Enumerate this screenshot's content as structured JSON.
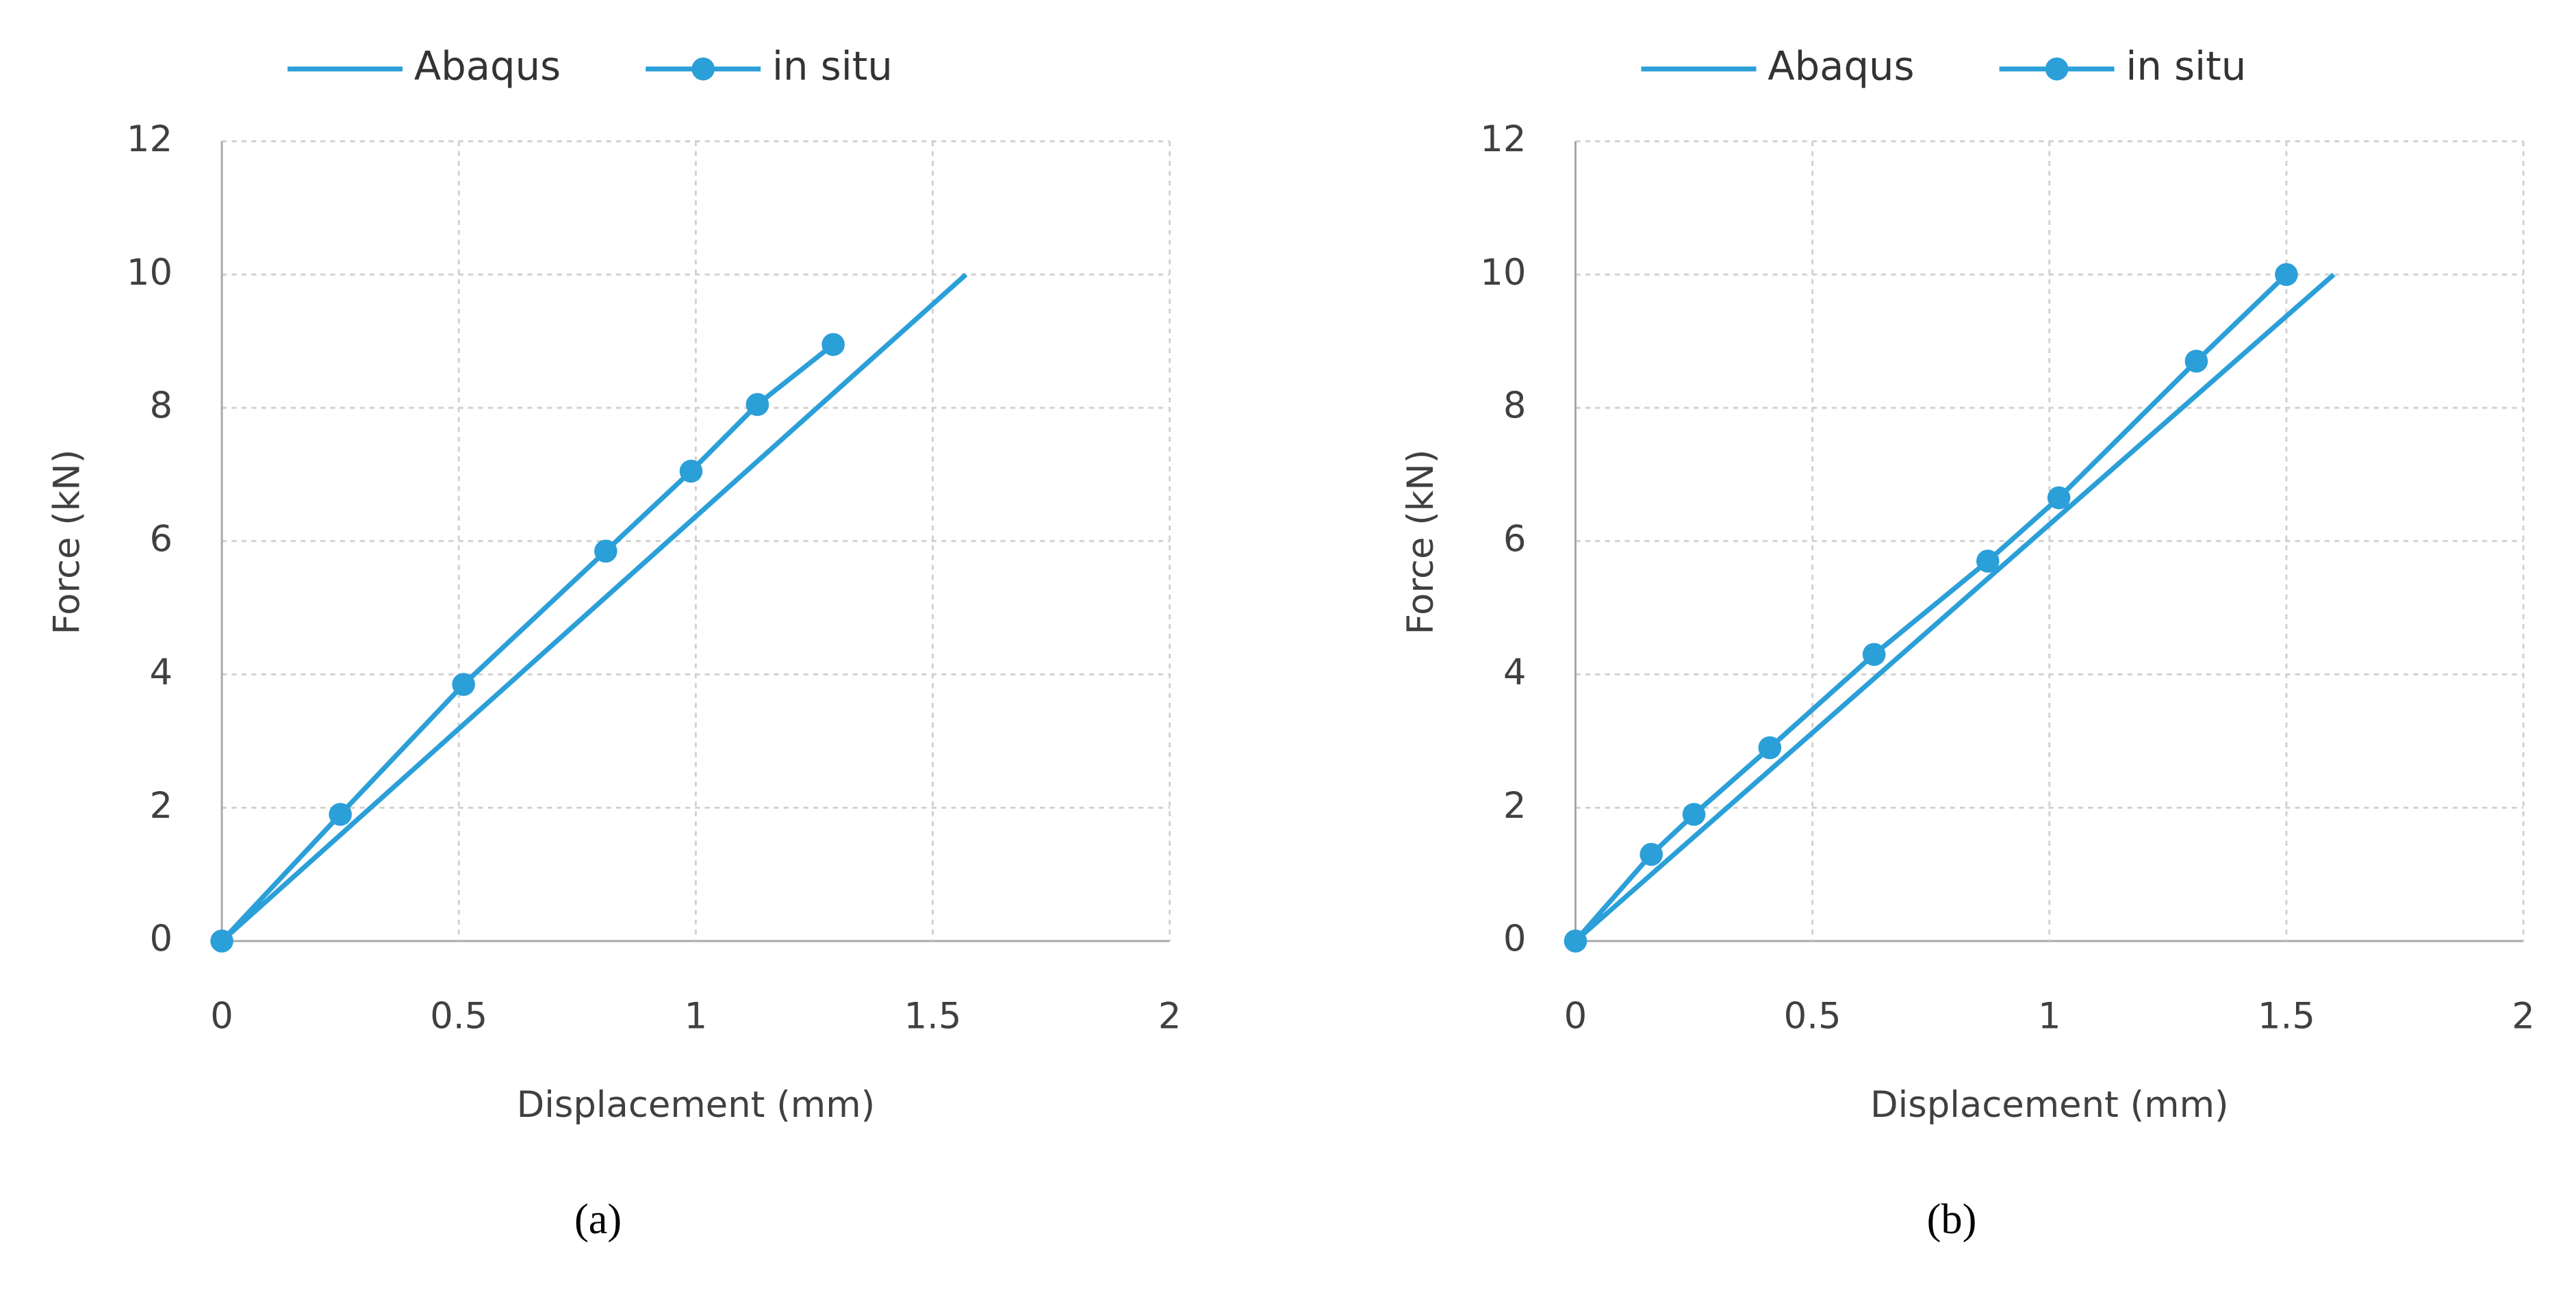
{
  "chart_data": [
    {
      "type": "line",
      "caption": "(a)",
      "xlabel": "Displacement (mm)",
      "ylabel": "Force (kN)",
      "xlim": [
        0,
        2
      ],
      "ylim": [
        0,
        12
      ],
      "xticks": [
        0,
        0.5,
        1,
        1.5,
        2
      ],
      "yticks": [
        0,
        2,
        4,
        6,
        8,
        10,
        12
      ],
      "grid": true,
      "series": [
        {
          "name": "Abaqus",
          "color": "#2b9fd8",
          "marker": false,
          "x": [
            0,
            1.57
          ],
          "values": [
            0,
            10
          ]
        },
        {
          "name": "in situ",
          "color": "#2b9fd8",
          "marker": true,
          "x": [
            0,
            0.25,
            0.51,
            0.81,
            0.99,
            1.13,
            1.29
          ],
          "values": [
            0,
            1.9,
            3.85,
            5.85,
            7.05,
            8.05,
            8.95
          ]
        }
      ]
    },
    {
      "type": "line",
      "caption": "(b)",
      "xlabel": "Displacement (mm)",
      "ylabel": "Force (kN)",
      "xlim": [
        0,
        2
      ],
      "ylim": [
        0,
        12
      ],
      "xticks": [
        0,
        0.5,
        1,
        1.5,
        2
      ],
      "yticks": [
        0,
        2,
        4,
        6,
        8,
        10,
        12
      ],
      "grid": true,
      "series": [
        {
          "name": "Abaqus",
          "color": "#2b9fd8",
          "marker": false,
          "x": [
            0,
            1.6
          ],
          "values": [
            0,
            10
          ]
        },
        {
          "name": "in situ",
          "color": "#2b9fd8",
          "marker": true,
          "x": [
            0,
            0.16,
            0.25,
            0.41,
            0.63,
            0.87,
            1.02,
            1.31,
            1.5
          ],
          "values": [
            0,
            1.3,
            1.9,
            2.9,
            4.3,
            5.7,
            6.65,
            8.7,
            10
          ]
        }
      ]
    }
  ]
}
